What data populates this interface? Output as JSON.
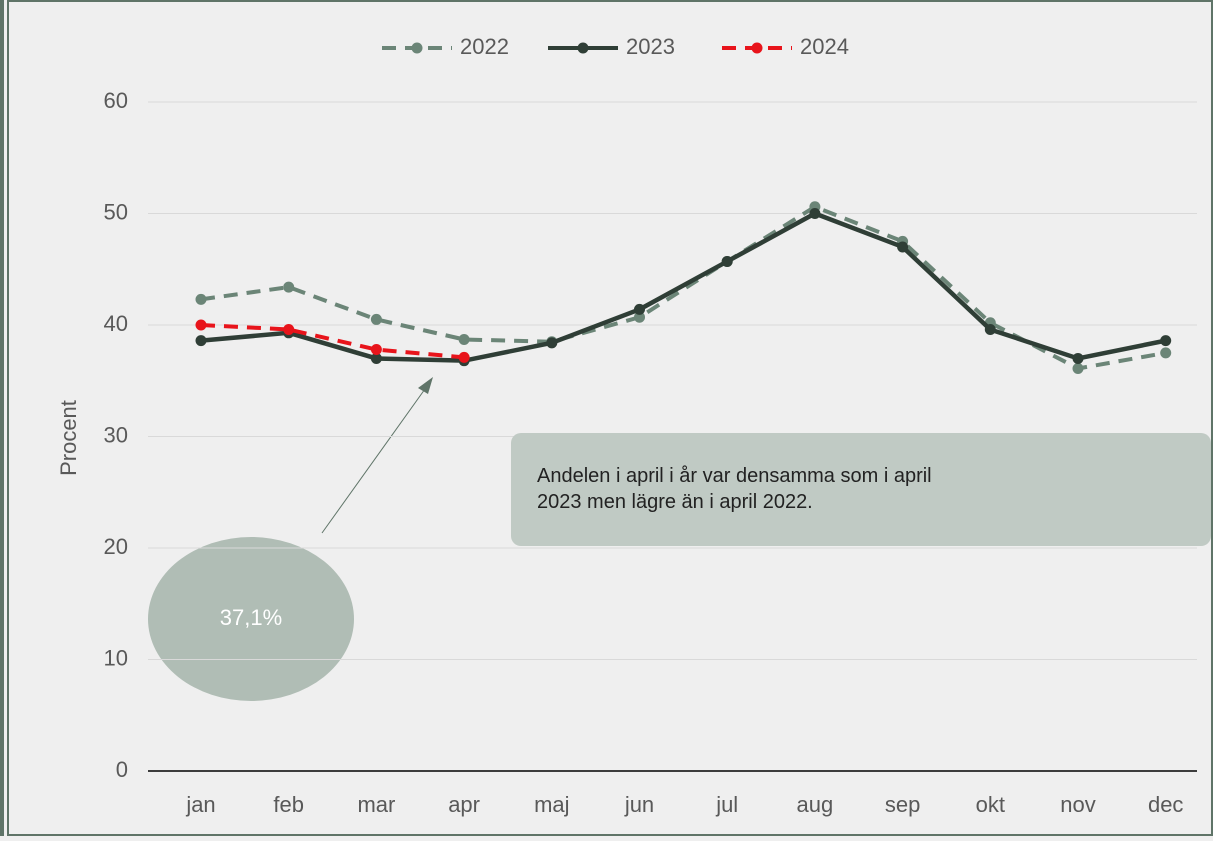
{
  "chart_data": {
    "type": "line",
    "y_label": "Procent",
    "categories": [
      "jan",
      "feb",
      "mar",
      "apr",
      "maj",
      "jun",
      "jul",
      "aug",
      "sep",
      "okt",
      "nov",
      "dec"
    ],
    "series": [
      {
        "name": "2022",
        "color": "#6b8577",
        "dashed": true,
        "values": [
          42.3,
          43.4,
          40.5,
          38.7,
          38.5,
          40.7,
          45.7,
          50.6,
          47.5,
          40.2,
          36.1,
          37.5
        ]
      },
      {
        "name": "2023",
        "color": "#2f3e36",
        "dashed": false,
        "values": [
          38.6,
          39.3,
          37.0,
          36.8,
          38.4,
          41.4,
          45.7,
          50.0,
          47.0,
          39.6,
          37.0,
          38.6
        ]
      },
      {
        "name": "2024",
        "color": "#e8141b",
        "dashed": true,
        "values": [
          40.0,
          39.6,
          37.8,
          37.1,
          null,
          null,
          null,
          null,
          null,
          null,
          null,
          null
        ]
      }
    ],
    "ylim": [
      0,
      60
    ],
    "yticks": [
      0,
      10,
      20,
      30,
      40,
      50,
      60
    ],
    "grid": true,
    "legend": "top",
    "annotations": [
      "37,1%",
      "Andelen i april i år var densamma som i april 2023 men  lägre än i april 2022."
    ]
  }
}
